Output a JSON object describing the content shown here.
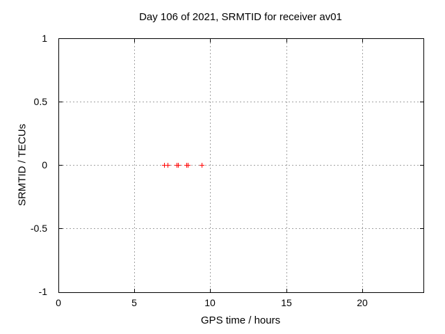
{
  "window": {
    "background": "#ffffff"
  },
  "chart_data": {
    "type": "scatter",
    "title": "Day 106 of 2021, SRMTID for receiver av01",
    "xlabel": "GPS time / hours",
    "ylabel": "SRMTID / TECUs",
    "xlim": [
      0,
      24
    ],
    "ylim": [
      -1,
      1
    ],
    "xticks": [
      {
        "value": 0,
        "label": "0"
      },
      {
        "value": 5,
        "label": "5"
      },
      {
        "value": 10,
        "label": "10"
      },
      {
        "value": 15,
        "label": "15"
      },
      {
        "value": 20,
        "label": "20"
      }
    ],
    "yticks": [
      {
        "value": -1,
        "label": "-1"
      },
      {
        "value": -0.5,
        "label": "-0.5"
      },
      {
        "value": 0,
        "label": "0"
      },
      {
        "value": 0.5,
        "label": "0.5"
      },
      {
        "value": 1,
        "label": "1"
      }
    ],
    "grid": true,
    "grid_style": "dotted",
    "legend_position": "none",
    "colors": {
      "marker": "#ff0000",
      "grid": "#a0a0a0",
      "border": "#000000",
      "text": "#000000"
    },
    "series": [
      {
        "name": "SRMTID",
        "marker": "plus",
        "color": "#ff0000",
        "points": [
          [
            6.95,
            0
          ],
          [
            7.17,
            0
          ],
          [
            7.8,
            0
          ],
          [
            7.88,
            0
          ],
          [
            8.43,
            0
          ],
          [
            8.51,
            0
          ],
          [
            9.45,
            0
          ]
        ]
      }
    ]
  }
}
